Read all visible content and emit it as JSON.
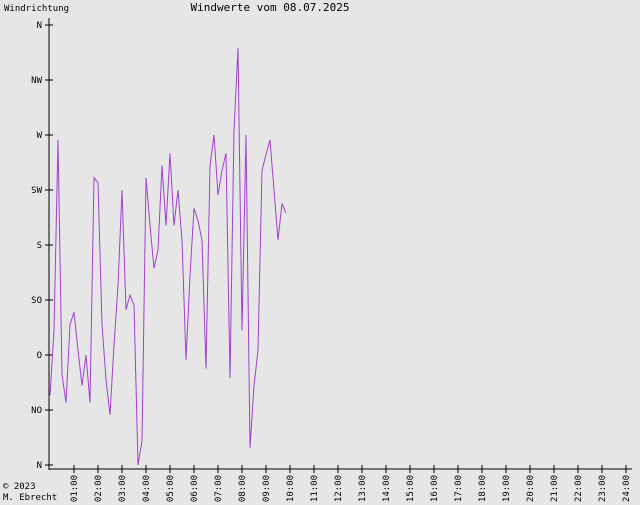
{
  "chart_data": {
    "type": "line",
    "title": "Windwerte vom 08.07.2025",
    "y_label": "Windrichtung",
    "footer": [
      "© 2023",
      "M. Ebrecht"
    ],
    "color": "#a040d0",
    "x": [
      0,
      10,
      20,
      30,
      40,
      50,
      60,
      70,
      80,
      90,
      100,
      110,
      120,
      130,
      140,
      150,
      160,
      170,
      180,
      190,
      200,
      210,
      220,
      230,
      240,
      250,
      260,
      270,
      280,
      290,
      300,
      310,
      320,
      330,
      340,
      350,
      360,
      370,
      380,
      390,
      400,
      410,
      420,
      430,
      440,
      450,
      460,
      470,
      480,
      490,
      500,
      510,
      520,
      530,
      540,
      550,
      560,
      570,
      580,
      590
    ],
    "values": [
      57,
      110,
      266,
      74,
      51,
      115,
      125,
      94,
      65,
      90,
      51,
      235,
      231,
      115,
      70,
      41,
      98,
      147,
      225,
      127,
      139,
      131,
      0,
      20,
      235,
      196,
      161,
      176,
      245,
      196,
      255,
      196,
      225,
      184,
      86,
      155,
      210,
      200,
      184,
      79,
      245,
      270,
      221,
      241,
      255,
      71,
      274,
      341,
      110,
      270,
      14,
      65,
      94,
      241,
      254,
      266,
      225,
      184,
      214,
      206
    ],
    "xlim": [
      0,
      1440
    ],
    "xticks": [
      {
        "value": 60,
        "label": "01:00"
      },
      {
        "value": 120,
        "label": "02:00"
      },
      {
        "value": 180,
        "label": "03:00"
      },
      {
        "value": 240,
        "label": "04:00"
      },
      {
        "value": 300,
        "label": "05:00"
      },
      {
        "value": 360,
        "label": "06:00"
      },
      {
        "value": 420,
        "label": "07:00"
      },
      {
        "value": 480,
        "label": "08:00"
      },
      {
        "value": 540,
        "label": "09:00"
      },
      {
        "value": 600,
        "label": "10:00"
      },
      {
        "value": 660,
        "label": "11:00"
      },
      {
        "value": 720,
        "label": "12:00"
      },
      {
        "value": 780,
        "label": "13:00"
      },
      {
        "value": 840,
        "label": "14:00"
      },
      {
        "value": 900,
        "label": "15:00"
      },
      {
        "value": 960,
        "label": "16:00"
      },
      {
        "value": 1020,
        "label": "17:00"
      },
      {
        "value": 1080,
        "label": "18:00"
      },
      {
        "value": 1140,
        "label": "19:00"
      },
      {
        "value": 1200,
        "label": "20:00"
      },
      {
        "value": 1260,
        "label": "21:00"
      },
      {
        "value": 1320,
        "label": "22:00"
      },
      {
        "value": 1380,
        "label": "23:00"
      },
      {
        "value": 1440,
        "label": "24:00"
      }
    ],
    "ylim": [
      0,
      360
    ],
    "yticks": [
      {
        "value": 0,
        "label": "N"
      },
      {
        "value": 45,
        "label": "NO"
      },
      {
        "value": 90,
        "label": "O"
      },
      {
        "value": 135,
        "label": "SO"
      },
      {
        "value": 180,
        "label": "S"
      },
      {
        "value": 225,
        "label": "SW"
      },
      {
        "value": 270,
        "label": "W"
      },
      {
        "value": 315,
        "label": "NW"
      },
      {
        "value": 360,
        "label": "N"
      }
    ]
  }
}
